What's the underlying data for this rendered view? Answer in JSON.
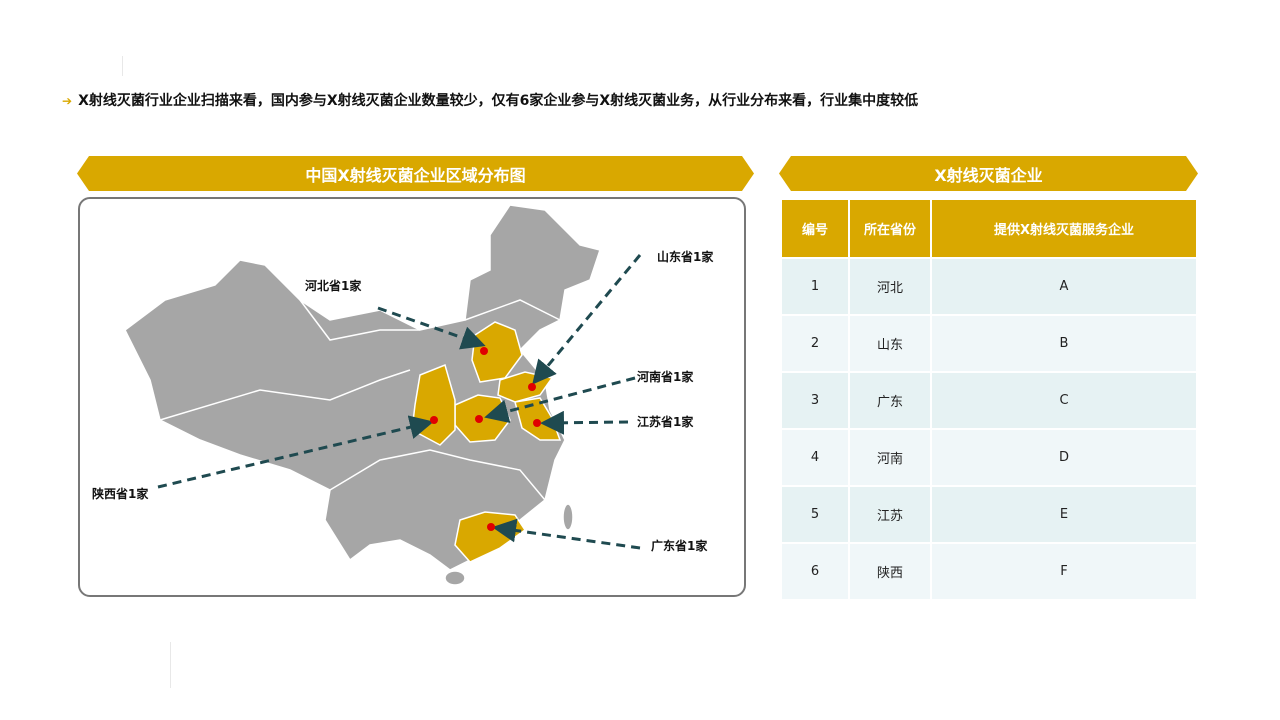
{
  "headline": "X射线灭菌行业企业扫描来看，国内参与X射线灭菌企业数量较少，仅有6家企业参与X射线灭菌业务，从行业分布来看，行业集中度较低",
  "map": {
    "title": "中国X射线灭菌企业区域分布图",
    "base_color": "#A6A6A6",
    "highlight_color": "#D9A800",
    "marker_color": "#E00000",
    "labels": {
      "hebei": "河北省1家",
      "shandong": "山东省1家",
      "henan": "河南省1家",
      "jiangsu": "江苏省1家",
      "shaanxi": "陕西省1家",
      "guangdong": "广东省1家"
    }
  },
  "table": {
    "title": "X射线灭菌企业",
    "headers": [
      "编号",
      "所在省份",
      "提供X射线灭菌服务企业"
    ],
    "rows": [
      [
        "1",
        "河北",
        "A"
      ],
      [
        "2",
        "山东",
        "B"
      ],
      [
        "3",
        "广东",
        "C"
      ],
      [
        "4",
        "河南",
        "D"
      ],
      [
        "5",
        "江苏",
        "E"
      ],
      [
        "6",
        "陕西",
        "F"
      ]
    ]
  }
}
